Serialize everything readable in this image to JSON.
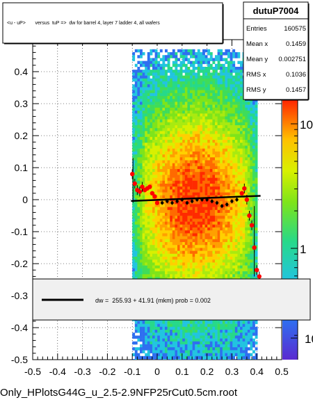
{
  "title_box": {
    "text": "<u - uP>       versus  tuP =>  dw for barrel 4, layer 7 ladder 4, all wafers"
  },
  "stats_box": {
    "name": "dutuP7004",
    "rows": [
      {
        "label": "Entries",
        "value": "160575"
      },
      {
        "label": "Mean x",
        "value": "0.1459"
      },
      {
        "label": "Mean y",
        "value": "0.002751"
      },
      {
        "label": "RMS x",
        "value": "0.1036"
      },
      {
        "label": "RMS y",
        "value": "0.1457"
      }
    ]
  },
  "fit_legend": {
    "text": "dw =  255.93 + 41.91 (mkm) prob = 0.002"
  },
  "footer": {
    "text": "Only_HPlotsG44G_u_2.5-2.9NFP25rCut0.5cm.root"
  },
  "colors": {
    "fit_line": "#000000",
    "profile_markers": "#ff0000",
    "hist_low": "#22c4e0",
    "hist_mid": "#d8f000",
    "hist_high": "#ff1a00"
  },
  "chart_data": {
    "type": "heatmap",
    "xlim": [
      -0.5,
      0.5
    ],
    "ylim": [
      -0.5,
      0.5
    ],
    "x_ticks": [
      -0.5,
      -0.4,
      -0.3,
      -0.2,
      -0.1,
      0,
      0.1,
      0.2,
      0.3,
      0.4,
      0.5
    ],
    "x_tick_labels": [
      "-0.5",
      "-0.4",
      "-0.3",
      "-0.2",
      "-0.1",
      "0",
      "0.1",
      "0.2",
      "0.3",
      "0.4",
      "0.5"
    ],
    "y_ticks": [
      -0.5,
      -0.4,
      -0.3,
      -0.2,
      -0.1,
      0,
      0.1,
      0.2,
      0.3,
      0.4
    ],
    "y_tick_labels": [
      "-0.5",
      "-0.4",
      "-0.3",
      "-0.2",
      "-0.1",
      "0",
      "0.1",
      "0.2",
      "0.3",
      "0.4"
    ],
    "grid": true,
    "heatmap_region": {
      "x": [
        -0.1,
        0.4
      ],
      "y": [
        -0.5,
        0.47
      ]
    },
    "colorbar": {
      "scale": "log",
      "tick_labels": [
        "1",
        "10"
      ],
      "decade_label_partial": "10"
    },
    "fit_line": {
      "x": [
        -0.105,
        0.415
      ],
      "y": [
        -0.004,
        0.012
      ]
    },
    "profile_points": {
      "x": [
        -0.1,
        -0.09,
        -0.08,
        -0.07,
        -0.06,
        -0.05,
        -0.04,
        -0.03,
        -0.02,
        -0.01,
        0.0,
        0.02,
        0.04,
        0.06,
        0.08,
        0.1,
        0.12,
        0.14,
        0.16,
        0.18,
        0.2,
        0.22,
        0.24,
        0.26,
        0.28,
        0.3,
        0.32,
        0.34,
        0.35,
        0.36,
        0.37,
        0.38,
        0.39,
        0.4,
        0.41
      ],
      "y": [
        0.08,
        0.05,
        0.03,
        0.025,
        0.04,
        0.03,
        0.035,
        0.04,
        0.02,
        0.01,
        -0.01,
        -0.01,
        -0.005,
        -0.01,
        -0.005,
        0.0,
        -0.01,
        -0.005,
        0.0,
        0.0,
        0.0,
        -0.005,
        -0.01,
        -0.02,
        -0.015,
        -0.005,
        0.0,
        0.02,
        0.035,
        0.0,
        -0.05,
        -0.08,
        -0.15,
        -0.22,
        -0.24
      ]
    }
  }
}
